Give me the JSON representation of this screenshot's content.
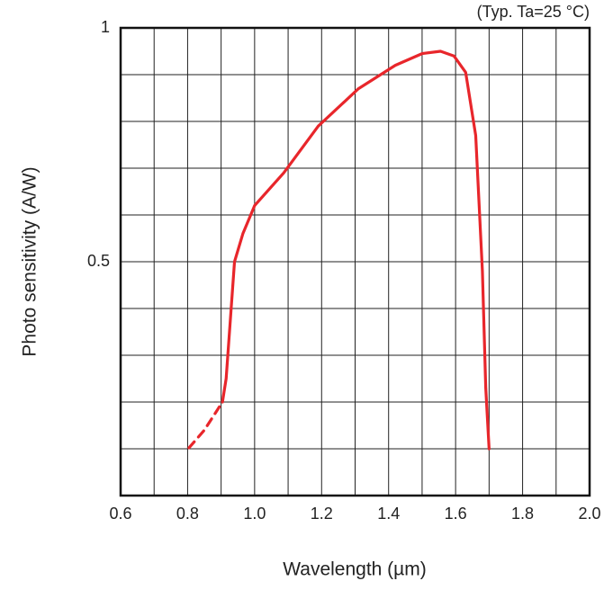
{
  "chart_data": {
    "type": "line",
    "annotation": "(Typ. Ta=25 °C)",
    "x_label": "Wavelength (µm)",
    "y_label": "Photo sensitivity (A/W)",
    "xlim": [
      0.6,
      2.0
    ],
    "ylim": [
      0,
      1
    ],
    "xticks": [
      0.6,
      0.8,
      {
        "value": 1.0,
        "label": "1.0"
      },
      1.2,
      1.4,
      1.6,
      1.8,
      {
        "value": 2.0,
        "label": "2.0"
      }
    ],
    "yticks": [
      0.5,
      1
    ],
    "xgrid": [
      0.7,
      0.8,
      0.9,
      1.0,
      1.1,
      1.2,
      1.3,
      1.4,
      1.5,
      1.6,
      1.7,
      1.8,
      1.9
    ],
    "ygrid": [
      0.1,
      0.2,
      0.3,
      0.4,
      0.5,
      0.6,
      0.7,
      0.8,
      0.9
    ],
    "series": [
      {
        "color": "#e8262b",
        "style": "dashed",
        "x": [
          0.804,
          0.85,
          0.904
        ],
        "values": [
          0.102,
          0.14,
          0.2
        ]
      },
      {
        "color": "#e8262b",
        "style": "solid",
        "x": [
          0.904,
          0.915,
          0.93,
          0.94,
          0.965,
          1.0,
          1.087,
          1.19,
          1.31,
          1.42,
          1.5,
          1.555,
          1.595,
          1.63,
          1.66,
          1.68,
          1.69,
          1.7
        ],
        "values": [
          0.2,
          0.25,
          0.4,
          0.5,
          0.56,
          0.62,
          0.69,
          0.79,
          0.87,
          0.92,
          0.945,
          0.95,
          0.94,
          0.905,
          0.77,
          0.48,
          0.23,
          0.1
        ]
      }
    ]
  }
}
